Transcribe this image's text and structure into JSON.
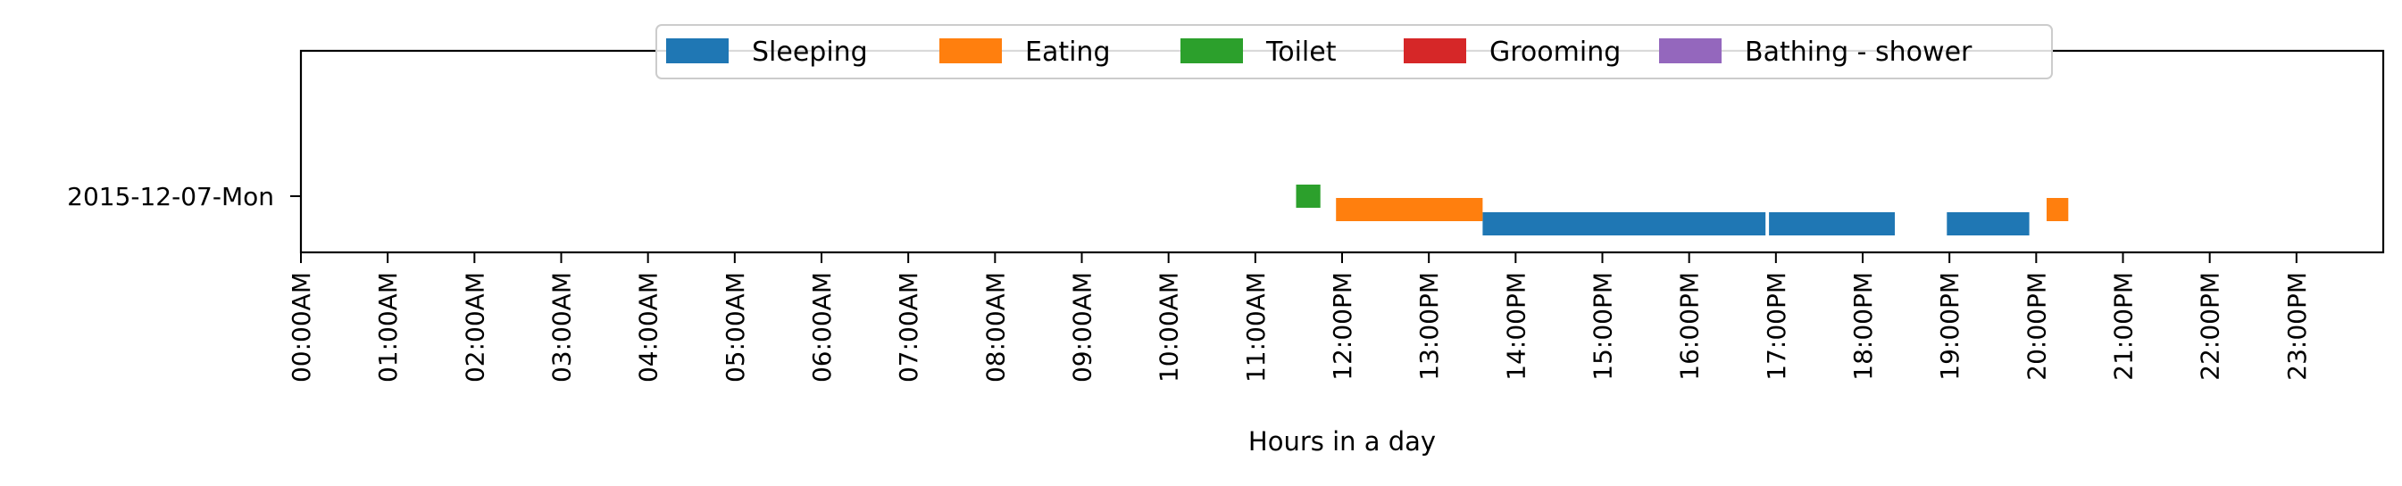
{
  "chart_data": {
    "type": "timeline",
    "xlabel": "Hours in a day",
    "ylabel": "",
    "xlim": [
      0,
      24
    ],
    "x_ticks": [
      "00:00AM",
      "01:00AM",
      "02:00AM",
      "03:00AM",
      "04:00AM",
      "05:00AM",
      "06:00AM",
      "07:00AM",
      "08:00AM",
      "09:00AM",
      "10:00AM",
      "11:00AM",
      "12:00PM",
      "13:00PM",
      "14:00PM",
      "15:00PM",
      "16:00PM",
      "17:00PM",
      "18:00PM",
      "19:00PM",
      "20:00PM",
      "21:00PM",
      "22:00PM",
      "23:00PM"
    ],
    "categories": [
      "2015-12-07-Mon"
    ],
    "legend_position": "top-center",
    "grid": false,
    "series": [
      {
        "name": "Sleeping",
        "color": "#1f77b4",
        "lane": 0,
        "intervals": [
          [
            13.62,
            16.88
          ],
          [
            16.92,
            18.37
          ],
          [
            18.97,
            19.92
          ]
        ]
      },
      {
        "name": "Eating",
        "color": "#ff7f0e",
        "lane": 1,
        "intervals": [
          [
            11.93,
            13.62
          ],
          [
            20.12,
            20.37
          ]
        ]
      },
      {
        "name": "Toilet",
        "color": "#2ca02c",
        "lane": 2,
        "intervals": [
          [
            11.47,
            11.75
          ]
        ]
      },
      {
        "name": "Grooming",
        "color": "#d62728",
        "lane": 3,
        "intervals": []
      },
      {
        "name": "Bathing - shower",
        "color": "#9467bd",
        "lane": 4,
        "intervals": []
      }
    ]
  }
}
